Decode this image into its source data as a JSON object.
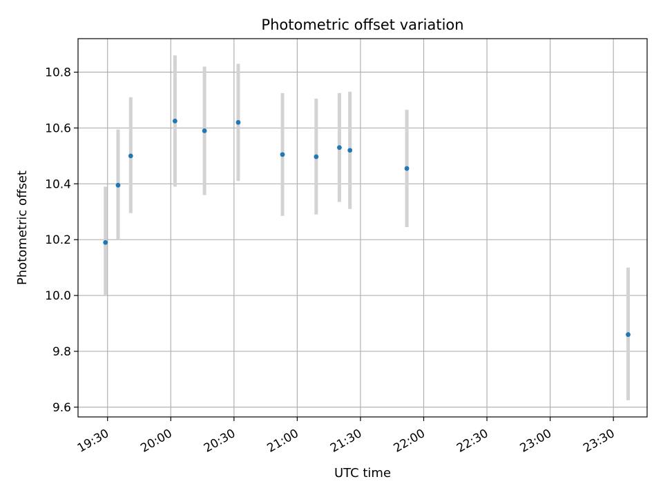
{
  "chart_data": {
    "type": "scatter",
    "title": "Photometric offset variation",
    "xlabel": "UTC time",
    "ylabel": "Photometric offset",
    "x_axis_type": "time",
    "xlim": [
      "19:16",
      "23:46"
    ],
    "ylim": [
      9.565,
      10.92
    ],
    "x_ticks": [
      "19:30",
      "20:00",
      "20:30",
      "21:00",
      "21:30",
      "22:00",
      "22:30",
      "23:00",
      "23:30"
    ],
    "y_ticks": [
      9.6,
      9.8,
      10.0,
      10.2,
      10.4,
      10.6,
      10.8
    ],
    "y_tick_labels": [
      "9.6",
      "9.8",
      "10.0",
      "10.2",
      "10.4",
      "10.6",
      "10.8"
    ],
    "grid": true,
    "colors": {
      "point": "#1f77b4",
      "errorbar": "#d3d3d3",
      "grid": "#b0b0b0"
    },
    "series": [
      {
        "points": [
          {
            "x": "19:29",
            "y": 10.19,
            "ylow": 10.0,
            "yhigh": 10.39
          },
          {
            "x": "19:35",
            "y": 10.395,
            "ylow": 10.2,
            "yhigh": 10.595
          },
          {
            "x": "19:41",
            "y": 10.5,
            "ylow": 10.295,
            "yhigh": 10.71
          },
          {
            "x": "20:02",
            "y": 10.625,
            "ylow": 10.39,
            "yhigh": 10.86
          },
          {
            "x": "20:16",
            "y": 10.59,
            "ylow": 10.36,
            "yhigh": 10.82
          },
          {
            "x": "20:32",
            "y": 10.62,
            "ylow": 10.41,
            "yhigh": 10.83
          },
          {
            "x": "20:53",
            "y": 10.505,
            "ylow": 10.285,
            "yhigh": 10.725
          },
          {
            "x": "21:09",
            "y": 10.497,
            "ylow": 10.29,
            "yhigh": 10.705
          },
          {
            "x": "21:20",
            "y": 10.53,
            "ylow": 10.335,
            "yhigh": 10.725
          },
          {
            "x": "21:25",
            "y": 10.52,
            "ylow": 10.31,
            "yhigh": 10.73
          },
          {
            "x": "21:52",
            "y": 10.455,
            "ylow": 10.245,
            "yhigh": 10.665
          },
          {
            "x": "23:37",
            "y": 9.86,
            "ylow": 9.625,
            "yhigh": 10.1
          }
        ]
      }
    ]
  }
}
